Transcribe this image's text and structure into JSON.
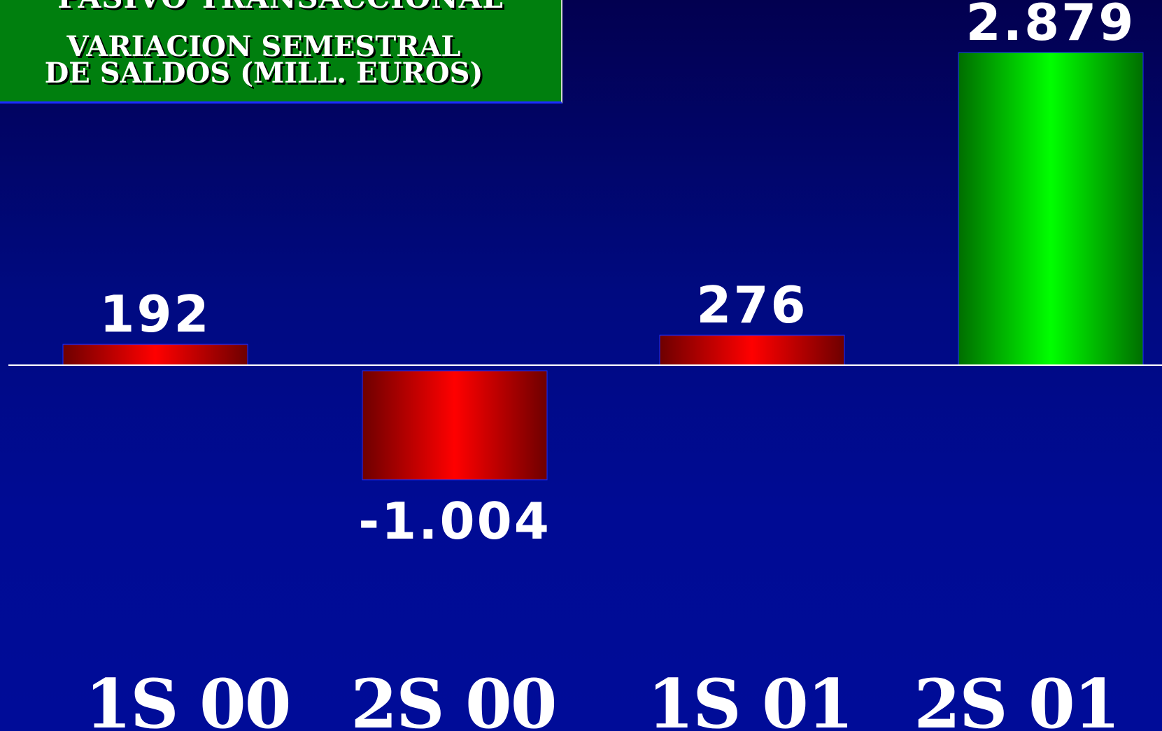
{
  "chart_data": {
    "type": "bar",
    "title": "PASIVO TRANSACCIONAL",
    "subtitle": "VARIACION SEMESTRAL\nDE SALDOS (MILL. EUROS)",
    "categories": [
      "1S 00",
      "2S 00",
      "1S 01",
      "2S 01"
    ],
    "values": [
      192,
      -1004,
      276,
      2879
    ],
    "value_labels": [
      "192",
      "-1.004",
      "276",
      "2.879"
    ],
    "ylim": [
      -1400,
      3000
    ],
    "grid": false,
    "legend": "none",
    "colors": {
      "negative_or_small": "#ff0000",
      "positive_highlight": "#00ff00",
      "baseline": "#ffffff",
      "background": "#000b94",
      "title_box": "#007f0e"
    }
  }
}
